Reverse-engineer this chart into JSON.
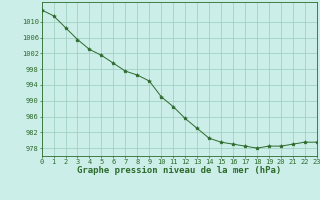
{
  "x": [
    0,
    1,
    2,
    3,
    4,
    5,
    6,
    7,
    8,
    9,
    10,
    11,
    12,
    13,
    14,
    15,
    16,
    17,
    18,
    19,
    20,
    21,
    22,
    23
  ],
  "y": [
    1013.0,
    1011.5,
    1008.5,
    1005.5,
    1003.0,
    1001.5,
    999.5,
    997.5,
    996.5,
    995.0,
    991.0,
    988.5,
    985.5,
    983.0,
    980.5,
    979.5,
    979.0,
    978.5,
    978.0,
    978.5,
    978.5,
    979.0,
    979.5,
    979.5
  ],
  "ylim": [
    976,
    1015
  ],
  "xlim": [
    0,
    23
  ],
  "yticks": [
    978,
    982,
    986,
    990,
    994,
    998,
    1002,
    1006,
    1010
  ],
  "xticks": [
    0,
    1,
    2,
    3,
    4,
    5,
    6,
    7,
    8,
    9,
    10,
    11,
    12,
    13,
    14,
    15,
    16,
    17,
    18,
    19,
    20,
    21,
    22,
    23
  ],
  "xlabel": "Graphe pression niveau de la mer (hPa)",
  "line_color": "#2d6a2d",
  "marker": "*",
  "bg_color": "#cceee8",
  "grid_color": "#99ccbb",
  "tick_color": "#2d6a2d",
  "label_color": "#2d6a2d",
  "axis_color": "#2d6a2d",
  "tick_fontsize": 5.0,
  "xlabel_fontsize": 6.5
}
